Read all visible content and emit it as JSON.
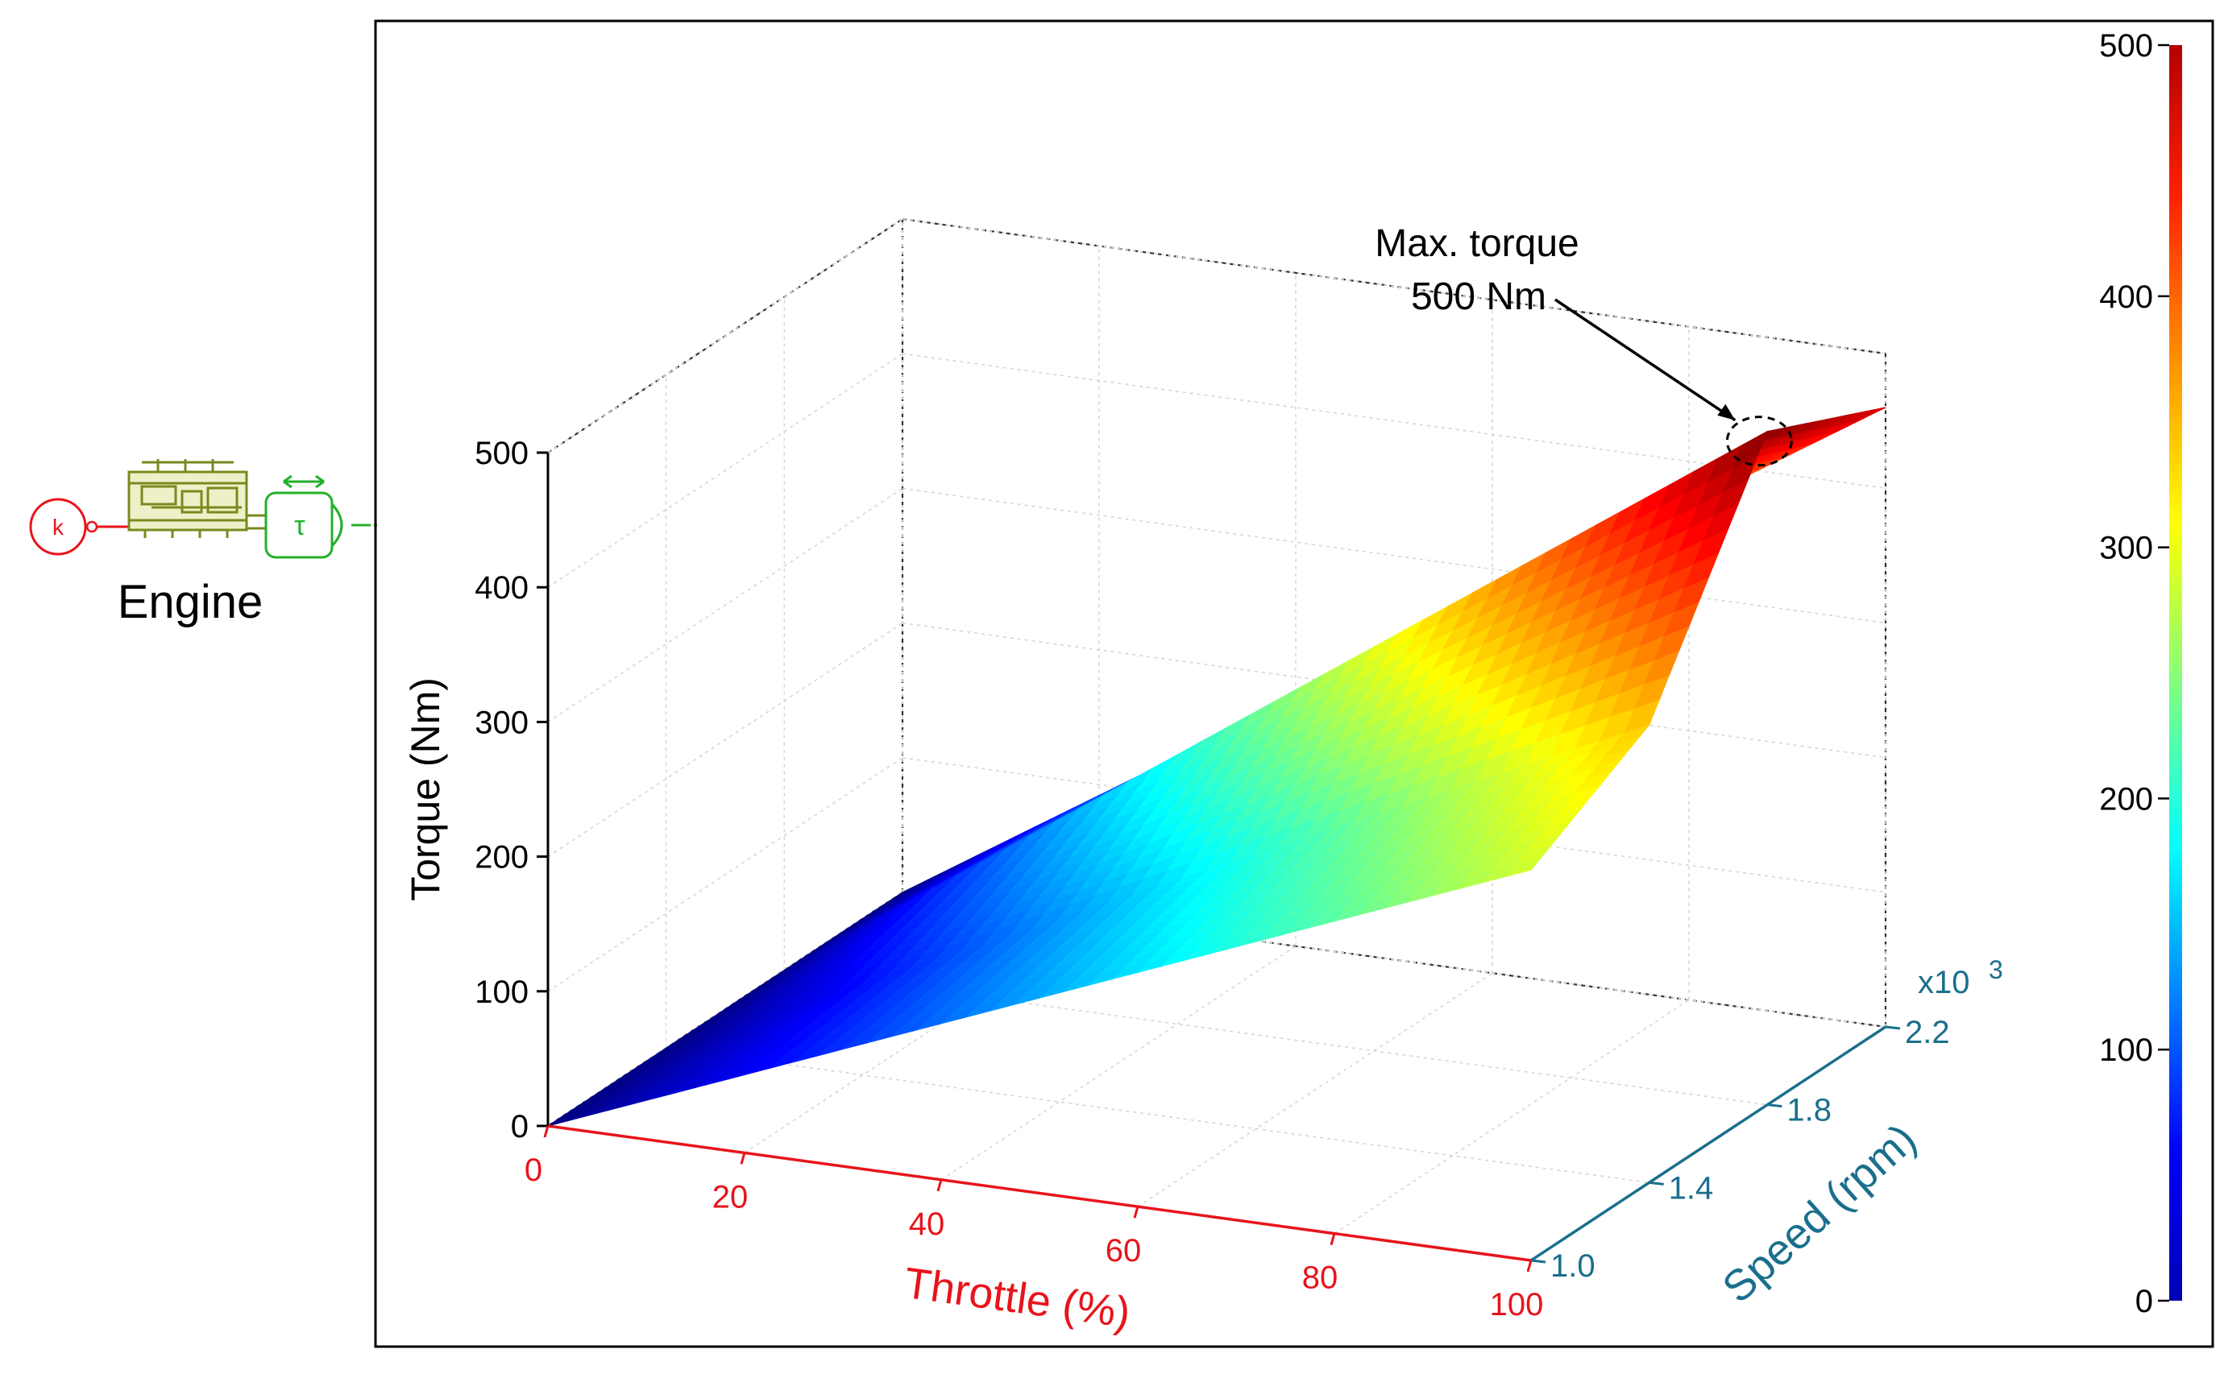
{
  "block": {
    "label": "Engine",
    "input_port_icon": "k-constant-icon",
    "engine_icon": "engine-block-icon",
    "output_icon": "torque-source-icon",
    "k_symbol": "k",
    "tau_symbol": "τ"
  },
  "chart_data": {
    "type": "surface3d",
    "title": "",
    "xlabel": "Throttle (%)",
    "ylabel": "Speed (rpm)",
    "zlabel": "Torque (Nm)",
    "y_multiplier": "x10",
    "y_multiplier_exp": "3",
    "x_ticks": [
      "0",
      "20",
      "40",
      "60",
      "80",
      "100"
    ],
    "y_ticks": [
      "1.0",
      "1.4",
      "1.8",
      "2.2"
    ],
    "z_ticks": [
      "0",
      "100",
      "200",
      "300",
      "400",
      "500"
    ],
    "xlim": [
      0,
      100
    ],
    "ylim": [
      1.0,
      2.2
    ],
    "zlim": [
      0,
      500
    ],
    "grid": true,
    "throttle": [
      0,
      100
    ],
    "speed_krpm": [
      1.0,
      1.4,
      1.8,
      2.2
    ],
    "torque": [
      [
        0,
        0,
        0,
        0
      ],
      [
        290,
        340,
        500,
        460
      ]
    ],
    "colorbar": {
      "colormap": "jet",
      "ticks": [
        "0",
        "100",
        "200",
        "300",
        "400",
        "500"
      ],
      "range": [
        0,
        500
      ]
    },
    "annotation": {
      "line1": "Max. torque",
      "line2": "500 Nm",
      "throttle": 100,
      "speed_krpm": 1.8,
      "torque": 500
    },
    "colors": {
      "x_axis": "#e8141b",
      "y_axis": "#1a6f8c",
      "z_axis": "#000000",
      "engine": "#7a8a1e",
      "source": "#22b02a",
      "input": "#e8141b"
    }
  }
}
